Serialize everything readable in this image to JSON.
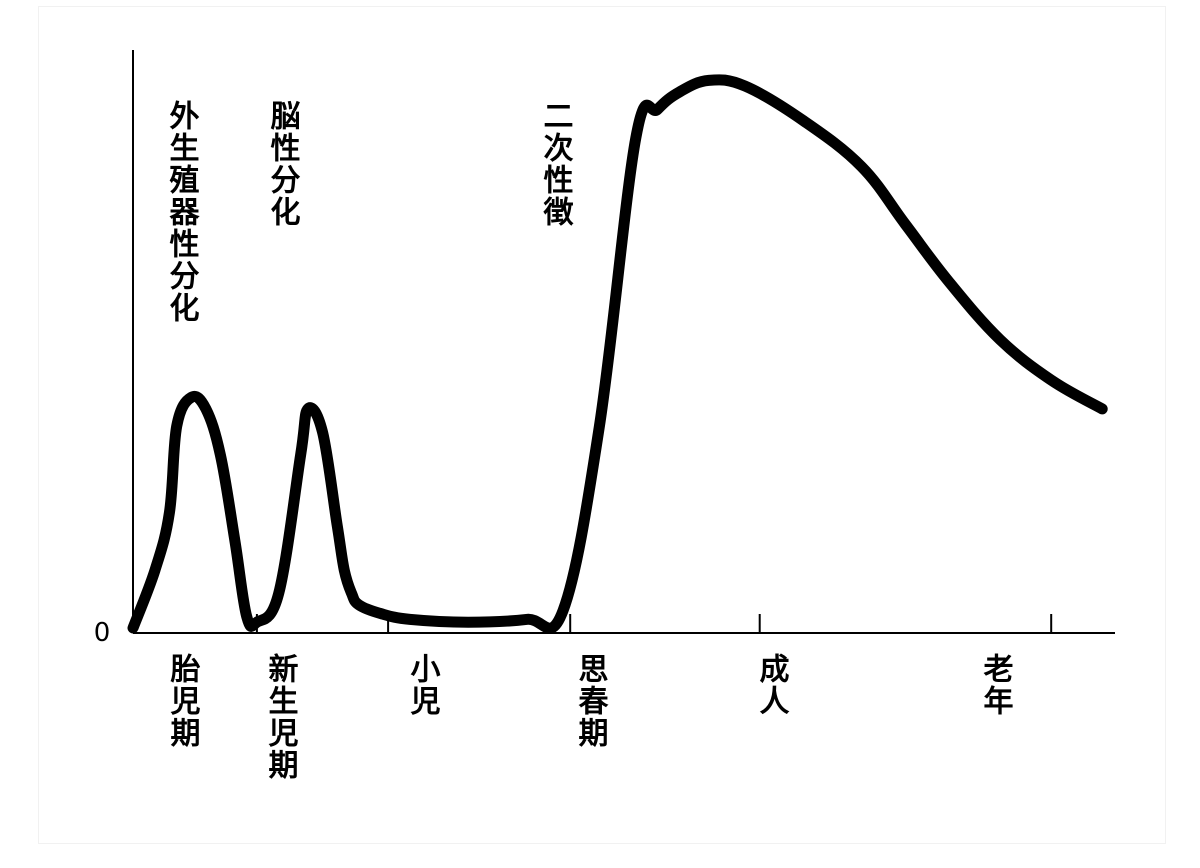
{
  "chart_data": {
    "type": "line",
    "title": "",
    "xlabel": "",
    "ylabel": "",
    "y_tick_label": "0",
    "color": "#000000",
    "stages": [
      "胎児期",
      "新生児期",
      "小児",
      "思春期",
      "成人",
      "老年"
    ],
    "annotations": [
      "外生殖器性分化",
      "脳性分化",
      "二次性徴"
    ],
    "x": [
      0,
      0.15,
      0.25,
      0.3,
      0.4,
      0.5,
      0.6,
      0.7,
      0.78,
      0.85,
      1.0,
      1.15,
      1.2,
      1.3,
      1.4,
      1.45,
      1.5,
      1.55,
      1.7,
      1.9,
      2.3,
      2.7,
      2.95,
      3.2,
      3.45,
      3.6,
      3.75,
      3.95,
      4.2,
      4.6,
      5.0,
      5.3,
      5.6,
      5.95,
      6.3,
      6.65
    ],
    "y": [
      0,
      0.1,
      0.2,
      0.35,
      0.4,
      0.38,
      0.3,
      0.15,
      0.02,
      0.01,
      0.06,
      0.3,
      0.38,
      0.34,
      0.18,
      0.1,
      0.06,
      0.04,
      0.025,
      0.015,
      0.01,
      0.015,
      0.03,
      0.35,
      0.85,
      0.9,
      0.93,
      0.95,
      0.94,
      0.88,
      0.8,
      0.7,
      0.6,
      0.5,
      0.43,
      0.38
    ],
    "stage_boundaries": [
      0.85,
      1.75,
      3.0,
      4.3,
      6.3
    ],
    "ylim": [
      0,
      1.02
    ],
    "xlim": [
      0,
      6.65
    ]
  }
}
